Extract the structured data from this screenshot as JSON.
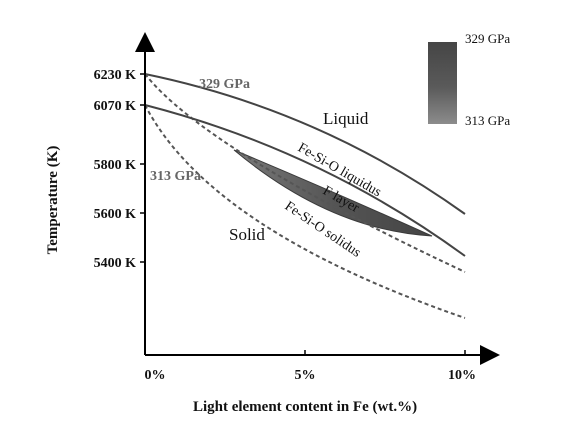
{
  "axes": {
    "xlabel": "Light element content in Fe (wt.%)",
    "ylabel": "Temperature (K)",
    "x_ticks": [
      "0%",
      "5%",
      "10%"
    ],
    "y_ticks": [
      "6230 K",
      "6070 K",
      "5800 K",
      "5600 K",
      "5400 K"
    ]
  },
  "regions": {
    "liquid": "Liquid",
    "solid": "Solid",
    "f_layer": "F layer"
  },
  "curves": {
    "liquidus": "Fe-Si-O liquidus",
    "solidus": "Fe-Si-O solidus"
  },
  "pressures": {
    "upper": "329 GPa",
    "lower": "313 GPa"
  },
  "legend": {
    "top": "329 GPa",
    "bottom": "313 GPa"
  },
  "colors": {
    "line": "#444444",
    "f_layer_dark": "#4a4a4a",
    "f_layer_light": "#8a8a8a"
  }
}
